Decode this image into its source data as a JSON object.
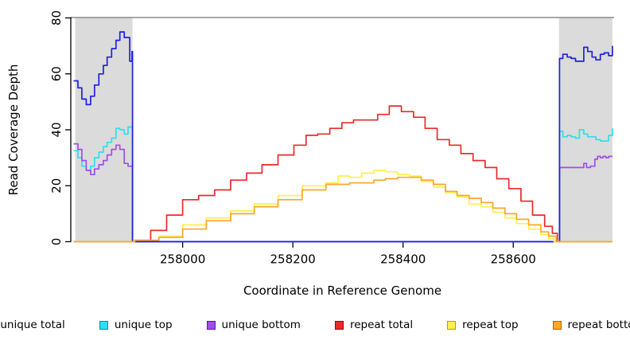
{
  "chart_data": {
    "type": "line",
    "title": "",
    "xlabel": "Coordinate in Reference Genome",
    "ylabel": "Read Coverage Depth",
    "xlim": [
      257797,
      258783
    ],
    "ylim": [
      0,
      80
    ],
    "x_ticks": [
      258000,
      258200,
      258400,
      258600
    ],
    "y_ticks": [
      0,
      20,
      40,
      60,
      80
    ],
    "grid": false,
    "legend_position": "bottom",
    "plot_border_top_color": "#8a8a8a",
    "axis_color": "#000000",
    "shaded_regions": [
      {
        "name": "repeat-region-left",
        "x0": 257805,
        "x1": 257909,
        "color": "#dbdbdb"
      },
      {
        "name": "repeat-region-right",
        "x0": 258683,
        "x1": 258780,
        "color": "#dbdbdb"
      }
    ],
    "series": [
      {
        "name": "unique top",
        "color": "#2fdef0",
        "points": [
          [
            257802,
            32.5
          ],
          [
            257810,
            30
          ],
          [
            257817,
            27
          ],
          [
            257825,
            25.5
          ],
          [
            257833,
            27
          ],
          [
            257840,
            30
          ],
          [
            257848,
            32
          ],
          [
            257856,
            34
          ],
          [
            257863,
            35.5
          ],
          [
            257871,
            37
          ],
          [
            257879,
            40.5
          ],
          [
            257886,
            40
          ],
          [
            257894,
            38.5
          ],
          [
            257901,
            41
          ],
          [
            257908,
            41
          ],
          [
            257909,
            0
          ],
          [
            258683,
            0
          ],
          [
            258684,
            39.5
          ],
          [
            258690,
            37.5
          ],
          [
            258698,
            38
          ],
          [
            258705,
            37.5
          ],
          [
            258713,
            37
          ],
          [
            258720,
            40
          ],
          [
            258728,
            38.5
          ],
          [
            258735,
            37.5
          ],
          [
            258743,
            37.5
          ],
          [
            258750,
            36.5
          ],
          [
            258758,
            36
          ],
          [
            258765,
            36
          ],
          [
            258773,
            38
          ],
          [
            258780,
            40.5
          ]
        ]
      },
      {
        "name": "unique bottom",
        "color": "#a04fe6",
        "points": [
          [
            257802,
            35
          ],
          [
            257810,
            33
          ],
          [
            257817,
            29
          ],
          [
            257825,
            25.5
          ],
          [
            257833,
            24
          ],
          [
            257840,
            26
          ],
          [
            257848,
            27.5
          ],
          [
            257856,
            29
          ],
          [
            257863,
            31
          ],
          [
            257871,
            33
          ],
          [
            257879,
            34.5
          ],
          [
            257886,
            33
          ],
          [
            257894,
            28
          ],
          [
            257901,
            27
          ],
          [
            257908,
            27
          ],
          [
            257909,
            0
          ],
          [
            258683,
            0
          ],
          [
            258684,
            26.5
          ],
          [
            258695,
            26.5
          ],
          [
            258710,
            26.5
          ],
          [
            258720,
            26.5
          ],
          [
            258728,
            28
          ],
          [
            258733,
            26.5
          ],
          [
            258740,
            27
          ],
          [
            258748,
            29.5
          ],
          [
            258753,
            30.5
          ],
          [
            258758,
            30
          ],
          [
            258763,
            30.5
          ],
          [
            258768,
            30
          ],
          [
            258773,
            30.5
          ],
          [
            258780,
            30.5
          ]
        ]
      },
      {
        "name": "unique total",
        "color": "#1f1fe0",
        "points": [
          [
            257802,
            57.5
          ],
          [
            257810,
            55
          ],
          [
            257817,
            51
          ],
          [
            257825,
            49
          ],
          [
            257833,
            52
          ],
          [
            257840,
            56
          ],
          [
            257848,
            60
          ],
          [
            257856,
            63
          ],
          [
            257863,
            66
          ],
          [
            257871,
            69
          ],
          [
            257879,
            72
          ],
          [
            257886,
            75
          ],
          [
            257894,
            73
          ],
          [
            257904,
            64.5
          ],
          [
            257908,
            68
          ],
          [
            257909,
            0
          ],
          [
            258683,
            0
          ],
          [
            258684,
            65.5
          ],
          [
            258690,
            67
          ],
          [
            258698,
            66
          ],
          [
            258705,
            65.5
          ],
          [
            258713,
            64.5
          ],
          [
            258720,
            64.5
          ],
          [
            258728,
            69.5
          ],
          [
            258735,
            68
          ],
          [
            258743,
            66
          ],
          [
            258750,
            65
          ],
          [
            258758,
            67
          ],
          [
            258765,
            67.5
          ],
          [
            258773,
            66.5
          ],
          [
            258780,
            70
          ]
        ]
      },
      {
        "name": "repeat total",
        "color": "#e82c2c",
        "points": [
          [
            257802,
            0
          ],
          [
            257913,
            0.5
          ],
          [
            257942,
            4
          ],
          [
            257971,
            9.5
          ],
          [
            258000,
            15
          ],
          [
            258029,
            16.5
          ],
          [
            258058,
            18.5
          ],
          [
            258087,
            22
          ],
          [
            258116,
            24.5
          ],
          [
            258144,
            27.5
          ],
          [
            258173,
            31
          ],
          [
            258202,
            34.5
          ],
          [
            258224,
            38
          ],
          [
            258245,
            38.5
          ],
          [
            258267,
            40.5
          ],
          [
            258289,
            42.5
          ],
          [
            258310,
            43.5
          ],
          [
            258332,
            43.5
          ],
          [
            258354,
            45.5
          ],
          [
            258375,
            48.5
          ],
          [
            258397,
            46.5
          ],
          [
            258419,
            44.5
          ],
          [
            258440,
            40.5
          ],
          [
            258462,
            36.5
          ],
          [
            258484,
            34.5
          ],
          [
            258505,
            31.5
          ],
          [
            258527,
            29
          ],
          [
            258549,
            26.5
          ],
          [
            258570,
            22.5
          ],
          [
            258592,
            19
          ],
          [
            258614,
            14.5
          ],
          [
            258635,
            9.5
          ],
          [
            258657,
            5.5
          ],
          [
            258671,
            3
          ],
          [
            258680,
            0
          ],
          [
            258780,
            0
          ]
        ]
      },
      {
        "name": "repeat top",
        "color": "#fff04a",
        "points": [
          [
            257802,
            0
          ],
          [
            257913,
            0.5
          ],
          [
            257957,
            2
          ],
          [
            258000,
            6
          ],
          [
            258043,
            8.5
          ],
          [
            258087,
            11
          ],
          [
            258130,
            13.5
          ],
          [
            258173,
            16.5
          ],
          [
            258217,
            20
          ],
          [
            258260,
            21
          ],
          [
            258282,
            23.5
          ],
          [
            258303,
            23
          ],
          [
            258325,
            24.5
          ],
          [
            258347,
            25.5
          ],
          [
            258368,
            25
          ],
          [
            258390,
            24
          ],
          [
            258412,
            23.5
          ],
          [
            258433,
            21.5
          ],
          [
            258455,
            19.5
          ],
          [
            258477,
            17.5
          ],
          [
            258498,
            16
          ],
          [
            258520,
            13.5
          ],
          [
            258542,
            12.5
          ],
          [
            258563,
            10.5
          ],
          [
            258585,
            8.5
          ],
          [
            258606,
            6.5
          ],
          [
            258628,
            4.5
          ],
          [
            258650,
            2.5
          ],
          [
            258664,
            1
          ],
          [
            258674,
            0
          ],
          [
            258780,
            0
          ]
        ]
      },
      {
        "name": "repeat bottom",
        "color": "#ffa42e",
        "points": [
          [
            257802,
            0
          ],
          [
            257913,
            0.5
          ],
          [
            257957,
            1.5
          ],
          [
            258000,
            4.5
          ],
          [
            258043,
            7.5
          ],
          [
            258087,
            10
          ],
          [
            258130,
            12.5
          ],
          [
            258173,
            15
          ],
          [
            258217,
            18.5
          ],
          [
            258260,
            20.5
          ],
          [
            258303,
            21
          ],
          [
            258347,
            22
          ],
          [
            258368,
            22.5
          ],
          [
            258390,
            23
          ],
          [
            258412,
            23
          ],
          [
            258433,
            22
          ],
          [
            258455,
            20.5
          ],
          [
            258477,
            18
          ],
          [
            258498,
            16.5
          ],
          [
            258520,
            15.5
          ],
          [
            258542,
            14
          ],
          [
            258563,
            12
          ],
          [
            258585,
            10
          ],
          [
            258606,
            8
          ],
          [
            258628,
            6
          ],
          [
            258650,
            3.5
          ],
          [
            258664,
            2
          ],
          [
            258678,
            0
          ],
          [
            258780,
            0
          ]
        ]
      }
    ]
  },
  "legend": {
    "items": [
      {
        "label": "unique total",
        "color": "#1a1aff",
        "border": "#000090"
      },
      {
        "label": "unique top",
        "color": "#2fdef0",
        "border": "#0092a8"
      },
      {
        "label": "unique bottom",
        "color": "#a04fe6",
        "border": "#6a0dad"
      },
      {
        "label": "repeat total",
        "color": "#e82c2c",
        "border": "#a00000"
      },
      {
        "label": "repeat top",
        "color": "#fff04a",
        "border": "#b0a000"
      },
      {
        "label": "repeat bottom",
        "color": "#ffa42e",
        "border": "#b06a00"
      }
    ]
  }
}
